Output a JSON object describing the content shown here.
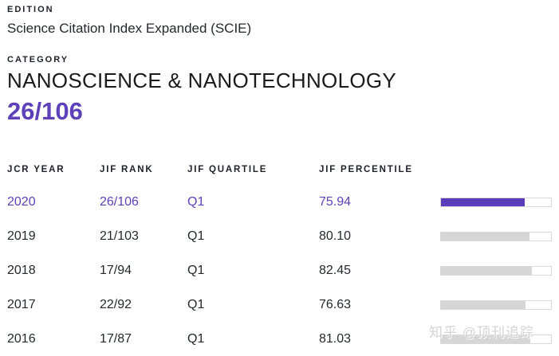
{
  "edition": {
    "label": "EDITION",
    "value": "Science Citation Index Expanded (SCIE)"
  },
  "category": {
    "label": "CATEGORY",
    "value": "NANOSCIENCE & NANOTECHNOLOGY",
    "current_rank": "26/106"
  },
  "chart_data": {
    "type": "table",
    "columns": [
      "JCR YEAR",
      "JIF RANK",
      "JIF QUARTILE",
      "JIF PERCENTILE"
    ],
    "rows": [
      {
        "year": "2020",
        "rank": "26/106",
        "quartile": "Q1",
        "percentile": "75.94",
        "percent": 75.94,
        "highlighted": true
      },
      {
        "year": "2019",
        "rank": "21/103",
        "quartile": "Q1",
        "percentile": "80.10",
        "percent": 80.1,
        "highlighted": false
      },
      {
        "year": "2018",
        "rank": "17/94",
        "quartile": "Q1",
        "percentile": "82.45",
        "percent": 82.45,
        "highlighted": false
      },
      {
        "year": "2017",
        "rank": "22/92",
        "quartile": "Q1",
        "percentile": "76.63",
        "percent": 76.63,
        "highlighted": false
      },
      {
        "year": "2016",
        "rank": "17/87",
        "quartile": "Q1",
        "percentile": "81.03",
        "percent": 81.03,
        "highlighted": false
      }
    ]
  },
  "table": {
    "headers": {
      "year": "JCR YEAR",
      "rank": "JIF RANK",
      "quartile": "JIF QUARTILE",
      "percentile": "JIF PERCENTILE"
    }
  },
  "watermark": "知乎 @顶刊追踪",
  "colors": {
    "accent_purple_text": "#5e41b8",
    "accent_purple_bar": "#5b3dbb",
    "bar_gray_fill": "#d6d6d6",
    "bar_border": "#d9d9d9",
    "text_dark": "#24292e"
  }
}
